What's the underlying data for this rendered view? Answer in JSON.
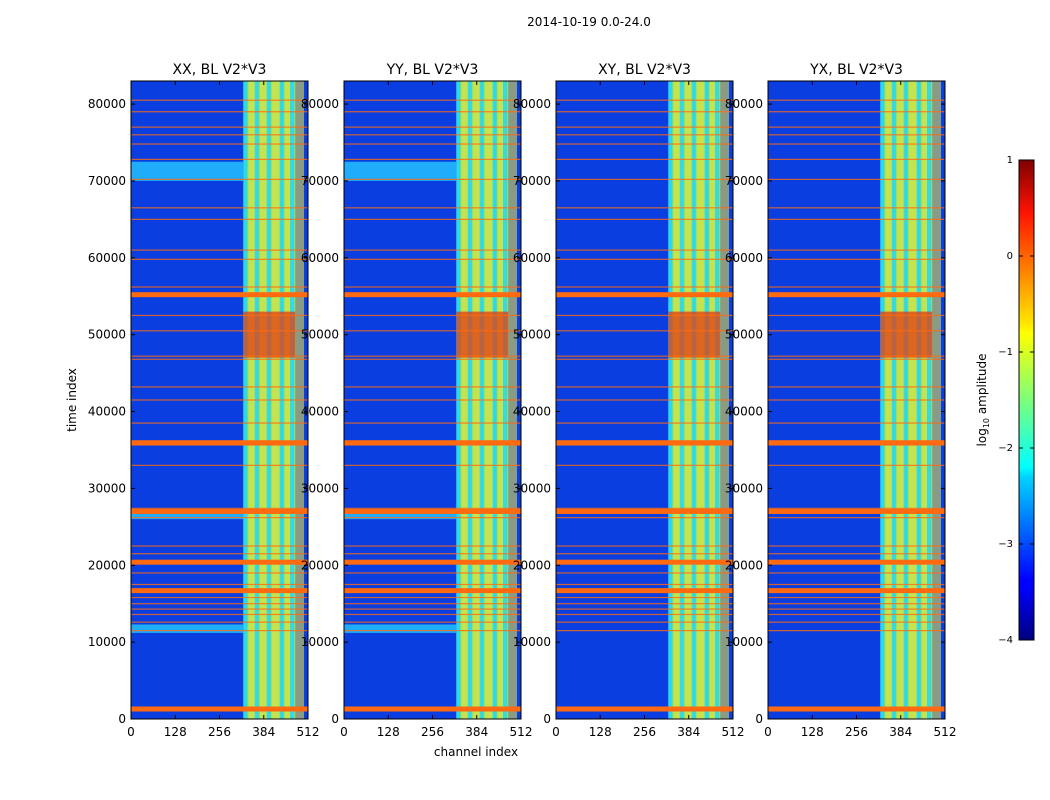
{
  "figure": {
    "suptitle": "2014-10-19 0.0-24.0"
  },
  "chart_data": {
    "type": "heatmap",
    "xlabel": "channel index",
    "ylabel": "time index",
    "xlim": [
      0,
      512
    ],
    "ylim": [
      0,
      83000
    ],
    "x_ticks": [
      "0",
      "128",
      "256",
      "384",
      "512"
    ],
    "x_tick_values": [
      0,
      128,
      256,
      384,
      512
    ],
    "y_ticks": [
      "0",
      "10000",
      "20000",
      "30000",
      "40000",
      "50000",
      "60000",
      "70000",
      "80000"
    ],
    "y_tick_values": [
      0,
      10000,
      20000,
      30000,
      40000,
      50000,
      60000,
      70000,
      80000
    ],
    "panels": [
      {
        "title": "XX, BL V2*V3",
        "polarization": "XX",
        "strong_band_levels": [
          70000,
          72500,
          11200,
          12300,
          26000,
          27000
        ]
      },
      {
        "title": "YY, BL V2*V3",
        "polarization": "YY",
        "strong_band_levels": [
          70000,
          72500,
          11200,
          12300,
          26000,
          27000
        ]
      },
      {
        "title": "XY, BL V2*V3",
        "polarization": "XY",
        "strong_band_levels": []
      },
      {
        "title": "YX, BL V2*V3",
        "polarization": "YX",
        "strong_band_levels": []
      }
    ],
    "signal_band_channels": [
      325,
      475
    ],
    "bright_interval_time": [
      47000,
      53000
    ],
    "rfi_time_rows": [
      1100,
      1500,
      11500,
      12600,
      13600,
      14300,
      15000,
      15800,
      16500,
      17500,
      19000,
      20400,
      21500,
      22500,
      26200,
      27400,
      33000,
      35800,
      36200,
      38500,
      41500,
      43200,
      46800,
      47200,
      50500,
      52500,
      55000,
      55300,
      56200,
      59800,
      61000,
      65000,
      66500,
      70200,
      72800,
      74800,
      76000,
      77000,
      79000,
      80500
    ],
    "colorbar": {
      "label": "log10 amplitude",
      "label_main": "log",
      "label_sub": "10",
      "label_rest": " amplitude",
      "ticks": [
        "1",
        "0",
        "−1",
        "−2",
        "−3",
        "−4"
      ],
      "tick_values": [
        1,
        0,
        -1,
        -2,
        -3,
        -4
      ],
      "vmin": -4,
      "vmax": 1,
      "colormap": "jet"
    }
  },
  "colors": {
    "background": "#0a3ee0",
    "grid_rfi": "#ff6a10",
    "axes": "#000000"
  }
}
